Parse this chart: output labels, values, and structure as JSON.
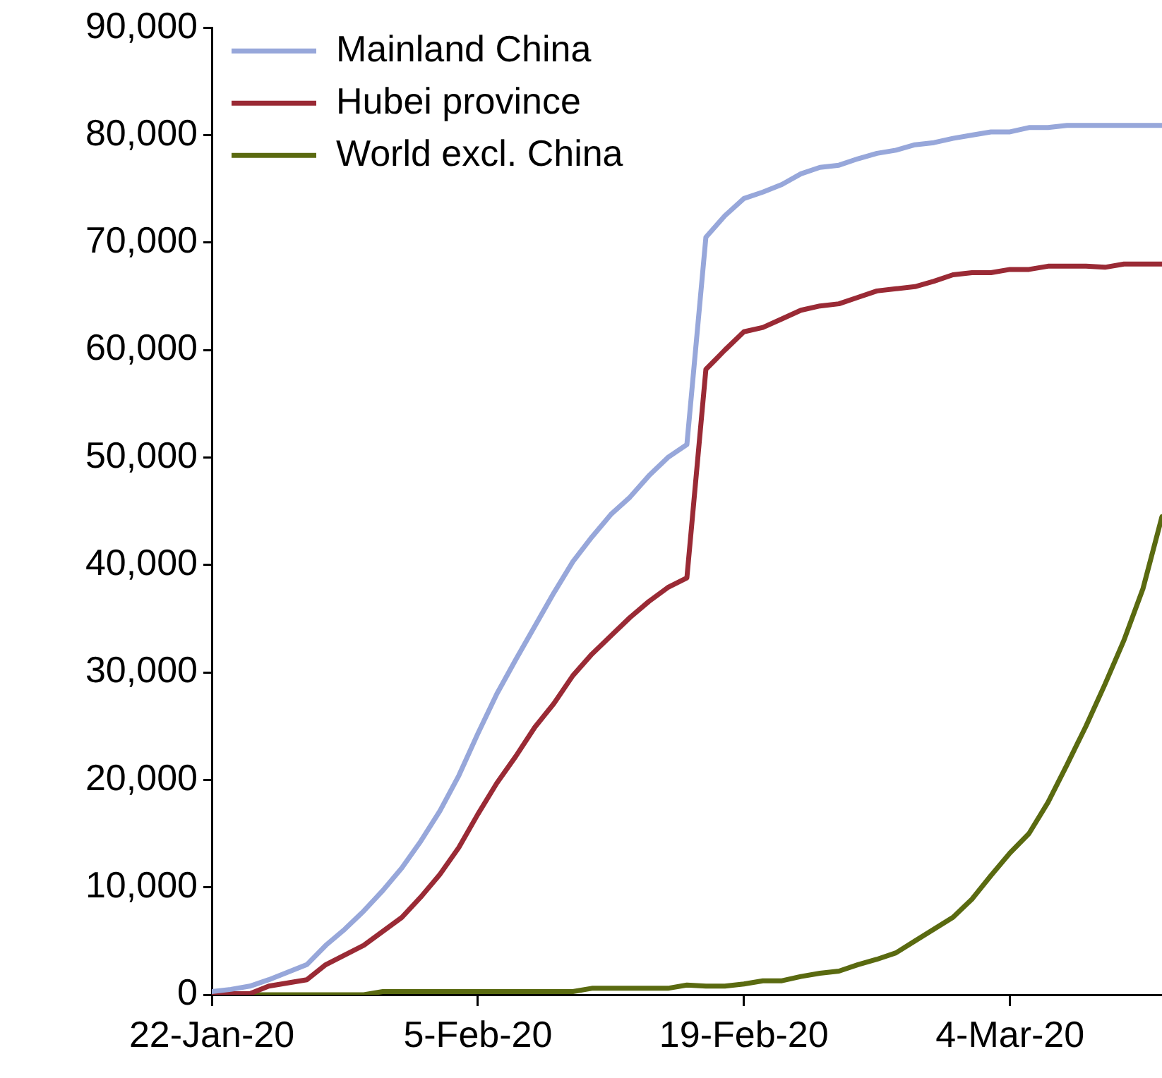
{
  "chart_data": {
    "type": "line",
    "x": [
      "2020-01-22",
      "2020-01-23",
      "2020-01-24",
      "2020-01-25",
      "2020-01-26",
      "2020-01-27",
      "2020-01-28",
      "2020-01-29",
      "2020-01-30",
      "2020-01-31",
      "2020-02-01",
      "2020-02-02",
      "2020-02-03",
      "2020-02-04",
      "2020-02-05",
      "2020-02-06",
      "2020-02-07",
      "2020-02-08",
      "2020-02-09",
      "2020-02-10",
      "2020-02-11",
      "2020-02-12",
      "2020-02-13",
      "2020-02-14",
      "2020-02-15",
      "2020-02-16",
      "2020-02-17",
      "2020-02-18",
      "2020-02-19",
      "2020-02-20",
      "2020-02-21",
      "2020-02-22",
      "2020-02-23",
      "2020-02-24",
      "2020-02-25",
      "2020-02-26",
      "2020-02-27",
      "2020-02-28",
      "2020-02-29",
      "2020-03-01",
      "2020-03-02",
      "2020-03-03",
      "2020-03-04",
      "2020-03-05",
      "2020-03-06",
      "2020-03-07",
      "2020-03-08",
      "2020-03-09",
      "2020-03-10",
      "2020-03-11",
      "2020-03-12"
    ],
    "series": [
      {
        "name": "Mainland China",
        "color": "#97a7da",
        "values": [
          300,
          500,
          800,
          1400,
          2100,
          2800,
          4600,
          6100,
          7800,
          9700,
          11800,
          14300,
          17100,
          20400,
          24300,
          28000,
          31200,
          34300,
          37400,
          40300,
          42600,
          44700,
          46300,
          48300,
          50000,
          51200,
          70500,
          72500,
          74100,
          74700,
          75400,
          76400,
          77000,
          77200,
          77800,
          78300,
          78600,
          79100,
          79300,
          79700,
          80000,
          80300,
          80300,
          80700,
          80700,
          80900,
          80900,
          80900,
          80900,
          80900,
          80900
        ]
      },
      {
        "name": "Hubei province",
        "color": "#9a2a35",
        "values": [
          100,
          100,
          100,
          800,
          1100,
          1400,
          2800,
          3700,
          4600,
          5900,
          7200,
          9100,
          11200,
          13700,
          16800,
          19700,
          22200,
          24900,
          27100,
          29700,
          31700,
          33400,
          35100,
          36600,
          37900,
          38800,
          58200,
          60000,
          61700,
          62100,
          62900,
          63700,
          64100,
          64300,
          64900,
          65500,
          65700,
          65900,
          66400,
          67000,
          67200,
          67200,
          67500,
          67500,
          67800,
          67800,
          67800,
          67700,
          68000,
          68000,
          68000
        ]
      },
      {
        "name": "World excl. China",
        "color": "#5a6a10",
        "values": [
          0,
          0,
          0,
          0,
          0,
          0,
          0,
          0,
          0,
          300,
          300,
          300,
          300,
          300,
          300,
          300,
          300,
          300,
          300,
          300,
          600,
          600,
          600,
          600,
          600,
          900,
          800,
          800,
          1000,
          1300,
          1300,
          1700,
          2000,
          2200,
          2800,
          3300,
          3900,
          5000,
          6100,
          7200,
          8900,
          11100,
          13200,
          15000,
          17900,
          21400,
          25000,
          28900,
          33000,
          37800,
          44500
        ]
      }
    ],
    "xlim": [
      "2020-01-22",
      "2020-03-12"
    ],
    "xticks": [
      {
        "value": "2020-01-22",
        "label": "22-Jan-20"
      },
      {
        "value": "2020-02-05",
        "label": "5-Feb-20"
      },
      {
        "value": "2020-02-19",
        "label": "19-Feb-20"
      },
      {
        "value": "2020-03-04",
        "label": "4-Mar-20"
      }
    ],
    "ylim": [
      0,
      90000
    ],
    "yticks": [
      {
        "value": 0,
        "label": "0"
      },
      {
        "value": 10000,
        "label": "10,000"
      },
      {
        "value": 20000,
        "label": "20,000"
      },
      {
        "value": 30000,
        "label": "30,000"
      },
      {
        "value": 40000,
        "label": "40,000"
      },
      {
        "value": 50000,
        "label": "50,000"
      },
      {
        "value": 60000,
        "label": "60,000"
      },
      {
        "value": 70000,
        "label": "70,000"
      },
      {
        "value": 80000,
        "label": "80,000"
      },
      {
        "value": 90000,
        "label": "90,000"
      }
    ],
    "legend": "top left",
    "marker": "none",
    "line_style": "solid"
  }
}
